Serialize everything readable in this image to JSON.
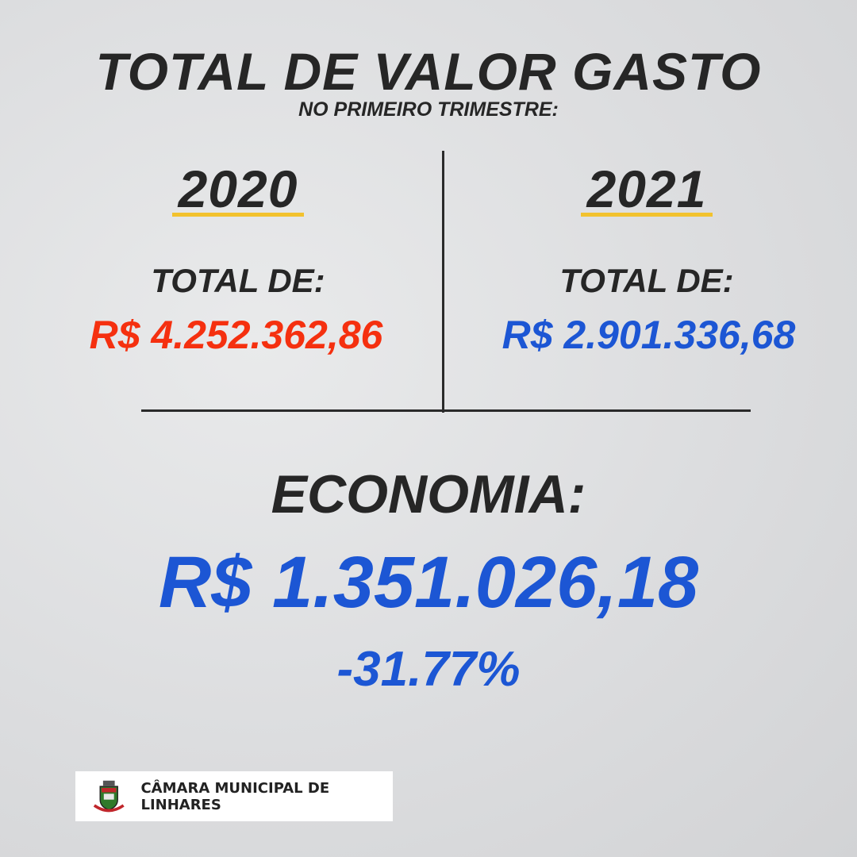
{
  "header": {
    "title": "TOTAL DE VALOR GASTO",
    "subtitle": "NO PRIMEIRO TRIMESTRE:"
  },
  "columns": [
    {
      "year": "2020",
      "label": "TOTAL DE:",
      "amount": "R$ 4.252.362,86",
      "color": "#f5300f"
    },
    {
      "year": "2021",
      "label": "TOTAL DE:",
      "amount": "R$ 2.901.336,68",
      "color": "#1c56d4"
    }
  ],
  "savings": {
    "label": "ECONOMIA:",
    "amount": "R$ 1.351.026,18",
    "percent": "-31.77%"
  },
  "footer": {
    "org": "CÂMARA MUNICIPAL DE LINHARES",
    "logo_icon": "coat-of-arms-icon"
  },
  "colors": {
    "accent_underline": "#f2c22e",
    "text_dark": "#262626"
  }
}
